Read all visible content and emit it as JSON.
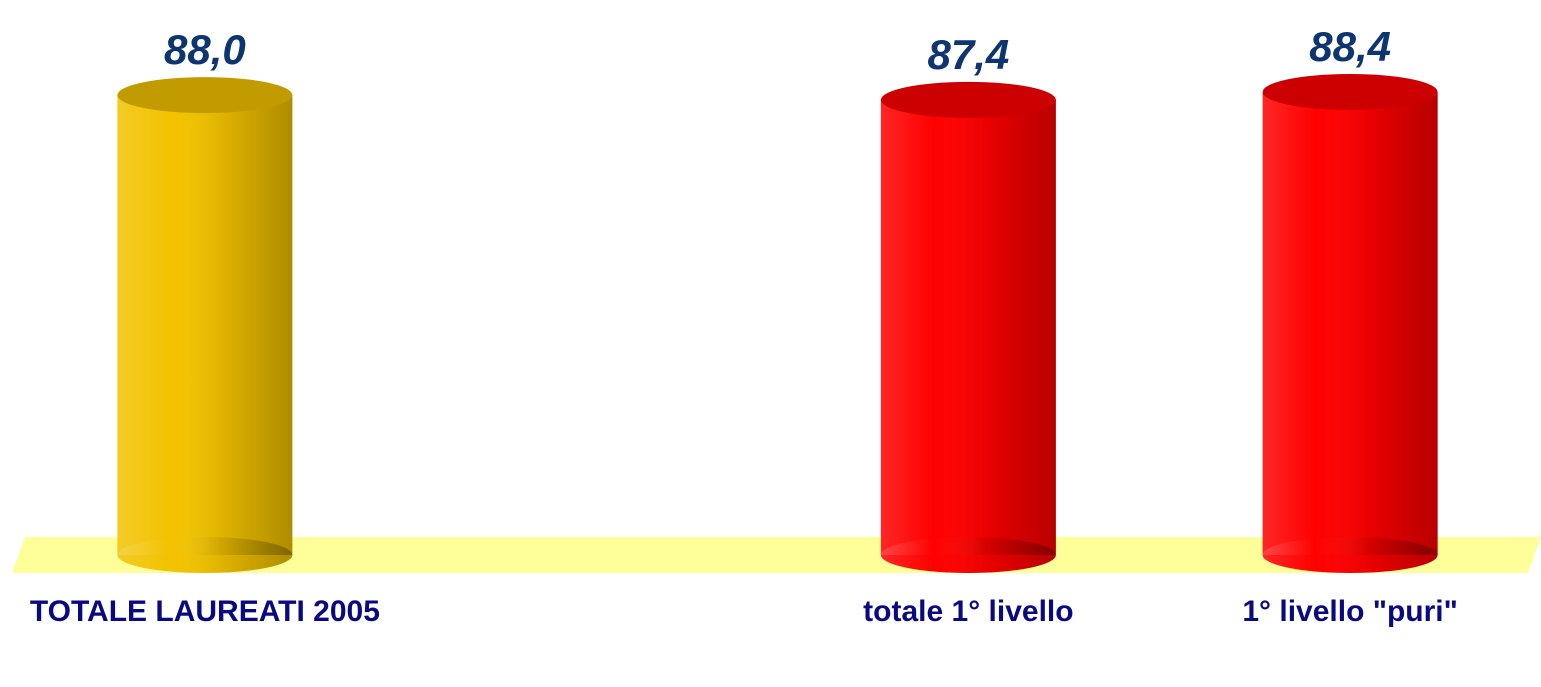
{
  "chart_data": {
    "type": "bar",
    "categories": [
      "TOTALE LAUREATI 2005",
      null,
      "totale 1° livello",
      "1° livello \"puri\""
    ],
    "values": [
      88.0,
      null,
      87.4,
      88.4
    ],
    "value_labels": [
      "88,0",
      null,
      "87,4",
      "88,4"
    ],
    "colors": [
      "#f2c200",
      null,
      "#ff0000",
      "#ff0000"
    ],
    "ylim": [
      30,
      100
    ]
  }
}
